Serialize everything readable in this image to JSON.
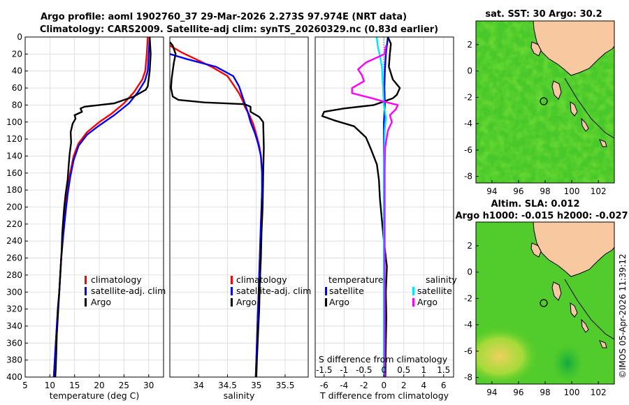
{
  "header": {
    "title_line1": "Argo profile: aoml 1902760_37 29-Mar-2026 2.273S 97.974E (NRT data)",
    "title_line2": "Climatology: CARS2009. Satellite-adj clim: synTS_20260329.nc (0.83d earlier)"
  },
  "footer": {
    "credit": "©IMOS 05-Apr-2026 11:39:12"
  },
  "colors": {
    "climatology": "#ff0000",
    "satellite_adj": "#0000ff",
    "argo": "#000000",
    "sat_diff": "#00e5ff",
    "sal_argo_diff": "#ff00ff",
    "land": "#f8c8a0"
  },
  "chart_data": [
    {
      "id": "temperature",
      "type": "line",
      "xlabel": "temperature (deg C)",
      "ylabel": "",
      "xlim": [
        5,
        33
      ],
      "ylim": [
        400,
        0
      ],
      "xticks": [
        5,
        10,
        15,
        20,
        25,
        30
      ],
      "yticks": [
        0,
        20,
        40,
        60,
        80,
        100,
        120,
        140,
        160,
        180,
        200,
        220,
        240,
        260,
        280,
        300,
        320,
        340,
        360,
        380,
        400
      ],
      "grid": true,
      "legend": {
        "position": "lower-right",
        "entries": [
          "climatology",
          "satellite-adj. clim",
          "Argo"
        ]
      },
      "series": [
        {
          "name": "climatology",
          "color": "#ff0000",
          "points": [
            [
              29.8,
              0
            ],
            [
              29.6,
              20
            ],
            [
              29.3,
              40
            ],
            [
              28.7,
              50
            ],
            [
              27,
              65
            ],
            [
              25,
              78
            ],
            [
              22.5,
              90
            ],
            [
              20,
              100
            ],
            [
              17.5,
              112
            ],
            [
              15.8,
              125
            ],
            [
              14.8,
              140
            ],
            [
              14.1,
              160
            ],
            [
              13.6,
              180
            ],
            [
              13.2,
              200
            ],
            [
              12.9,
              220
            ],
            [
              12.6,
              240
            ],
            [
              12.3,
              260
            ],
            [
              12.1,
              280
            ],
            [
              11.9,
              300
            ],
            [
              11.6,
              320
            ],
            [
              11.4,
              340
            ],
            [
              11.2,
              360
            ],
            [
              11,
              380
            ],
            [
              10.8,
              400
            ]
          ]
        },
        {
          "name": "satellite-adj. clim",
          "color": "#0000ff",
          "points": [
            [
              30.2,
              0
            ],
            [
              30,
              20
            ],
            [
              29.8,
              40
            ],
            [
              29.2,
              52
            ],
            [
              27.8,
              65
            ],
            [
              26,
              78
            ],
            [
              23,
              92
            ],
            [
              20,
              104
            ],
            [
              17.5,
              115
            ],
            [
              15.8,
              128
            ],
            [
              14.8,
              145
            ],
            [
              14.1,
              165
            ],
            [
              13.6,
              185
            ],
            [
              13.2,
              205
            ],
            [
              12.9,
              222
            ],
            [
              12.6,
              240
            ],
            [
              12.3,
              260
            ],
            [
              12.1,
              280
            ],
            [
              11.9,
              300
            ],
            [
              11.6,
              320
            ],
            [
              11.4,
              340
            ],
            [
              11.2,
              360
            ],
            [
              11,
              380
            ],
            [
              10.8,
              400
            ]
          ]
        },
        {
          "name": "Argo",
          "color": "#000000",
          "points": [
            [
              30.2,
              0
            ],
            [
              30.4,
              20
            ],
            [
              30.2,
              40
            ],
            [
              29.8,
              58
            ],
            [
              29.4,
              62
            ],
            [
              27,
              70
            ],
            [
              23,
              78
            ],
            [
              20,
              80
            ],
            [
              17,
              82
            ],
            [
              16.2,
              84
            ],
            [
              16.5,
              88
            ],
            [
              15,
              92
            ],
            [
              15.2,
              96
            ],
            [
              14.6,
              102
            ],
            [
              14.2,
              112
            ],
            [
              14.3,
              124
            ],
            [
              14,
              138
            ],
            [
              13.8,
              152
            ],
            [
              13.6,
              168
            ],
            [
              13.2,
              184
            ],
            [
              12.9,
              200
            ],
            [
              12.7,
              216
            ],
            [
              12.5,
              232
            ],
            [
              12.4,
              250
            ],
            [
              12.2,
              270
            ],
            [
              12,
              290
            ],
            [
              11.8,
              310
            ],
            [
              11.6,
              330
            ],
            [
              11.4,
              350
            ],
            [
              11.3,
              370
            ],
            [
              11.2,
              390
            ],
            [
              11.1,
              400
            ]
          ]
        }
      ]
    },
    {
      "id": "salinity",
      "type": "line",
      "xlabel": "salinity",
      "ylabel": "",
      "xlim": [
        33.5,
        35.9
      ],
      "ylim": [
        400,
        0
      ],
      "xticks": [
        34,
        34.5,
        35,
        35.5
      ],
      "xticklabels": [
        "34",
        "34.5",
        "35",
        "35.5"
      ],
      "grid": true,
      "legend": {
        "position": "lower-right",
        "entries": [
          "climatology",
          "satellite-adj. clim",
          "Argo"
        ]
      },
      "series": [
        {
          "name": "climatology",
          "color": "#ff0000",
          "points": [
            [
              33.5,
              10
            ],
            [
              33.7,
              18
            ],
            [
              33.95,
              26
            ],
            [
              34.25,
              36
            ],
            [
              34.5,
              46
            ],
            [
              34.6,
              56
            ],
            [
              34.7,
              66
            ],
            [
              34.77,
              76
            ],
            [
              34.8,
              82
            ],
            [
              34.88,
              92
            ],
            [
              34.95,
              103
            ],
            [
              35,
              115
            ],
            [
              35.05,
              128
            ],
            [
              35.08,
              140
            ],
            [
              35.1,
              160
            ],
            [
              35.1,
              180
            ],
            [
              35.09,
              200
            ],
            [
              35.08,
              220
            ],
            [
              35.07,
              240
            ],
            [
              35.06,
              260
            ],
            [
              35.05,
              280
            ],
            [
              35.04,
              300
            ],
            [
              35.03,
              320
            ],
            [
              35.02,
              340
            ],
            [
              35.01,
              360
            ],
            [
              35,
              380
            ],
            [
              34.99,
              400
            ]
          ]
        },
        {
          "name": "satellite-adj. clim",
          "color": "#0000ff",
          "points": [
            [
              33.5,
              20
            ],
            [
              33.8,
              26
            ],
            [
              34.3,
              35
            ],
            [
              34.6,
              46
            ],
            [
              34.7,
              58
            ],
            [
              34.75,
              68
            ],
            [
              34.8,
              78
            ],
            [
              34.85,
              88
            ],
            [
              34.9,
              100
            ],
            [
              34.97,
              112
            ],
            [
              35.03,
              125
            ],
            [
              35.08,
              140
            ],
            [
              35.1,
              160
            ],
            [
              35.1,
              180
            ],
            [
              35.09,
              200
            ],
            [
              35.08,
              220
            ],
            [
              35.07,
              240
            ],
            [
              35.06,
              260
            ],
            [
              35.05,
              280
            ],
            [
              35.04,
              300
            ],
            [
              35.03,
              320
            ],
            [
              35.02,
              340
            ],
            [
              35.01,
              360
            ],
            [
              35,
              380
            ],
            [
              34.99,
              400
            ]
          ]
        },
        {
          "name": "Argo",
          "color": "#000000",
          "points": [
            [
              33.5,
              6
            ],
            [
              33.55,
              10
            ],
            [
              33.6,
              20
            ],
            [
              33.57,
              30
            ],
            [
              33.55,
              40
            ],
            [
              33.53,
              50
            ],
            [
              33.52,
              60
            ],
            [
              33.55,
              70
            ],
            [
              33.65,
              74
            ],
            [
              34.1,
              77
            ],
            [
              34.8,
              79
            ],
            [
              34.9,
              82
            ],
            [
              34.9,
              88
            ],
            [
              35.05,
              94
            ],
            [
              35.12,
              100
            ],
            [
              35.13,
              130
            ],
            [
              35.12,
              160
            ],
            [
              35.11,
              200
            ],
            [
              35.09,
              230
            ],
            [
              35.08,
              260
            ],
            [
              35.06,
              290
            ],
            [
              35.05,
              320
            ],
            [
              35.03,
              350
            ],
            [
              35.01,
              380
            ],
            [
              35,
              400
            ]
          ]
        }
      ]
    },
    {
      "id": "difference",
      "type": "line",
      "xlabel": "T difference from climatology",
      "secondary_xlabel": "S difference from climatology",
      "xlim": [
        -6.9,
        7
      ],
      "ylim": [
        400,
        0
      ],
      "xticks": [
        -6,
        -4,
        -2,
        0,
        2,
        4,
        6
      ],
      "secondary_xlim": [
        -1.725,
        1.75
      ],
      "secondary_xticks": [
        -1.5,
        -1,
        -0.5,
        0,
        0.5,
        1,
        1.5
      ],
      "grid": true,
      "legend": {
        "temperature_title": "temperature",
        "salinity_title": "salinity",
        "entries": [
          "satellite",
          "Argo",
          "satellite",
          "Argo"
        ]
      },
      "series": [
        {
          "name": "temperature satellite",
          "color": "#0000ff",
          "axis": "T",
          "points": [
            [
              0.4,
              0
            ],
            [
              0.2,
              20
            ],
            [
              0.1,
              40
            ],
            [
              0.05,
              60
            ],
            [
              0.1,
              80
            ],
            [
              0,
              100
            ],
            [
              0,
              140
            ],
            [
              0,
              200
            ],
            [
              0,
              300
            ],
            [
              0,
              400
            ]
          ]
        },
        {
          "name": "temperature Argo",
          "color": "#000000",
          "axis": "T",
          "points": [
            [
              0.4,
              0
            ],
            [
              0.7,
              8
            ],
            [
              0.6,
              20
            ],
            [
              0.5,
              35
            ],
            [
              0.9,
              50
            ],
            [
              1.6,
              60
            ],
            [
              1.3,
              68
            ],
            [
              0.9,
              72
            ],
            [
              -1,
              80
            ],
            [
              -4,
              84
            ],
            [
              -6,
              88
            ],
            [
              -6.2,
              93
            ],
            [
              -5,
              98
            ],
            [
              -3,
              105
            ],
            [
              -1.8,
              118
            ],
            [
              -1.3,
              132
            ],
            [
              -0.7,
              150
            ],
            [
              -0.5,
              168
            ],
            [
              -0.4,
              190
            ],
            [
              -0.2,
              215
            ],
            [
              0,
              240
            ],
            [
              0.3,
              270
            ],
            [
              0.2,
              300
            ],
            [
              0.25,
              330
            ],
            [
              0.2,
              360
            ],
            [
              0.15,
              400
            ]
          ]
        },
        {
          "name": "salinity satellite",
          "color": "#00e5ff",
          "axis": "S",
          "points": [
            [
              -0.18,
              0
            ],
            [
              -0.15,
              12
            ],
            [
              -0.1,
              22
            ],
            [
              -0.05,
              35
            ],
            [
              -0.02,
              60
            ],
            [
              0,
              80
            ],
            [
              0.05,
              95
            ],
            [
              0.02,
              110
            ],
            [
              0,
              150
            ],
            [
              0,
              400
            ]
          ]
        },
        {
          "name": "salinity Argo",
          "color": "#ff00ff",
          "axis": "S",
          "points": [
            [
              0.05,
              10
            ],
            [
              0.02,
              20
            ],
            [
              -0.45,
              30
            ],
            [
              -0.65,
              38
            ],
            [
              -0.55,
              45
            ],
            [
              -0.5,
              52
            ],
            [
              -0.8,
              60
            ],
            [
              -0.8,
              66
            ],
            [
              -0.3,
              72
            ],
            [
              0,
              76
            ],
            [
              0.35,
              80
            ],
            [
              0.3,
              85
            ],
            [
              0.15,
              92
            ],
            [
              0.2,
              100
            ],
            [
              0.1,
              110
            ],
            [
              0.03,
              130
            ],
            [
              0.02,
              160
            ],
            [
              0.02,
              200
            ],
            [
              0.02,
              260
            ],
            [
              0.02,
              320
            ],
            [
              0.02,
              400
            ]
          ]
        }
      ]
    },
    {
      "id": "sst_map",
      "type": "heatmap",
      "title": "sat. SST: 30 Argo: 30.2",
      "xlim": [
        92.8,
        103.2
      ],
      "ylim": [
        -8.5,
        3.8
      ],
      "xticks": [
        94,
        96,
        98,
        100,
        102
      ],
      "yticks": [
        -8,
        -6,
        -4,
        -2,
        0,
        2
      ],
      "float_position": [
        97.974,
        -2.273
      ]
    },
    {
      "id": "sla_map",
      "type": "heatmap",
      "title": "Altim. SLA: 0.012",
      "subtitle": "Argo h1000: -0.015 h2000: -0.027",
      "xlim": [
        92.8,
        103.2
      ],
      "ylim": [
        -8.5,
        3.8
      ],
      "xticks": [
        94,
        96,
        98,
        100,
        102
      ],
      "yticks": [
        -8,
        -6,
        -4,
        -2,
        0,
        2
      ],
      "float_position": [
        97.974,
        -2.273
      ]
    }
  ]
}
